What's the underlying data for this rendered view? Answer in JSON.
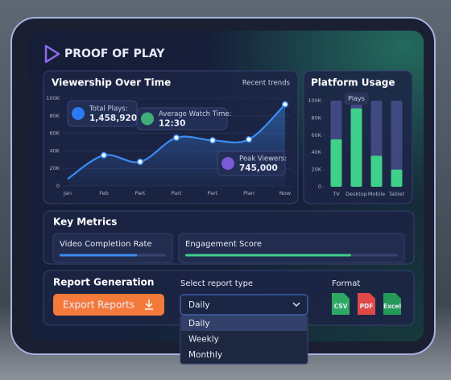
{
  "header": {
    "title": "PROOF OF PLAY"
  },
  "chart_data": [
    {
      "type": "line",
      "title": "Viewership Over Time",
      "subtitle": "Recent trends",
      "categories": [
        "Jan",
        "Feb",
        "Part",
        "Part",
        "Part",
        "Plan",
        "Now"
      ],
      "values": [
        8000,
        35000,
        27500,
        55000,
        52000,
        53000,
        93000
      ],
      "color": "#3b8cf2",
      "ylim": [
        0,
        100000
      ],
      "yticks": [
        0,
        {
          "value": 20000,
          "label": "20K"
        },
        {
          "value": 40000,
          "label": "40K"
        },
        {
          "value": 60000,
          "label": "60K"
        },
        {
          "value": 80000,
          "label": "80K"
        },
        {
          "value": 100000,
          "label": "100K"
        }
      ],
      "annotations": [
        {
          "label": "Total Plays:",
          "value": "1,458,920"
        },
        {
          "label": "Average Watch Time:",
          "value": "12:30"
        },
        {
          "label": "Peak Viewers:",
          "value": "745,000"
        }
      ]
    },
    {
      "type": "bar",
      "title": "Platform Usage",
      "annotation": "Plays",
      "categories": [
        "TV",
        "Desktop",
        "Mobile",
        "Tablet"
      ],
      "values": [
        55000,
        91000,
        36000,
        20000
      ],
      "color": "#3fd08a",
      "ylim": [
        0,
        100000
      ],
      "yticks": [
        0,
        {
          "value": 20000,
          "label": "20K"
        },
        {
          "value": 40000,
          "label": "40K"
        },
        {
          "value": 60000,
          "label": "60K"
        },
        {
          "value": 80000,
          "label": "80K"
        },
        {
          "value": 100000,
          "label": "100K"
        }
      ]
    }
  ],
  "metrics": {
    "title": "Key Metrics",
    "items": [
      {
        "label": "Video Completion Rate",
        "value": 73,
        "color": "#3b8cf2"
      },
      {
        "label": "Engagement Score",
        "value": 78,
        "color": "#3fd08a"
      }
    ]
  },
  "report": {
    "title": "Report Generation",
    "button": "Export Reports",
    "select_label": "Select report type",
    "selected": "Daily",
    "options": [
      "Daily",
      "Weekly",
      "Monthly"
    ],
    "format_label": "Format",
    "formats": [
      "CSV",
      "PDF",
      "Excel"
    ]
  }
}
